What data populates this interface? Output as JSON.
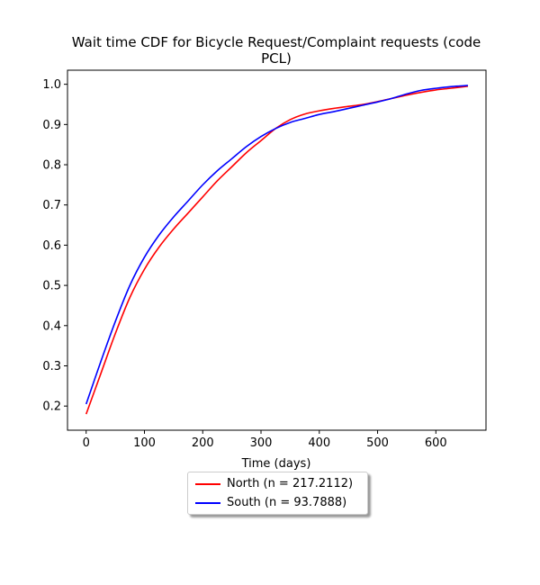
{
  "chart_data": {
    "type": "line",
    "title_lines": [
      "Wait time CDF for Bicycle Request/Complaint  requests (code",
      "PCL)"
    ],
    "xlabel": "Time (days)",
    "ylabel": "",
    "xlim": [
      -32,
      686
    ],
    "ylim": [
      0.14,
      1.035
    ],
    "xticks": [
      0,
      100,
      200,
      300,
      400,
      500,
      600
    ],
    "yticks": [
      0.2,
      0.3,
      0.4,
      0.5,
      0.6,
      0.7,
      0.8,
      0.9,
      1.0
    ],
    "ytick_labels": [
      "0.2",
      "0.3",
      "0.4",
      "0.5",
      "0.6",
      "0.7",
      "0.8",
      "0.9",
      "1.0"
    ],
    "grid": false,
    "legend_position": "below-center",
    "series": [
      {
        "name": "North (n = 217.2112)",
        "color": "#ff0000",
        "x": [
          0,
          25,
          50,
          75,
          100,
          125,
          150,
          175,
          200,
          225,
          250,
          275,
          300,
          325,
          350,
          375,
          400,
          425,
          450,
          475,
          500,
          525,
          550,
          575,
          600,
          625,
          655
        ],
        "y": [
          0.18,
          0.28,
          0.38,
          0.47,
          0.54,
          0.595,
          0.64,
          0.68,
          0.72,
          0.76,
          0.795,
          0.83,
          0.86,
          0.89,
          0.912,
          0.926,
          0.934,
          0.94,
          0.945,
          0.95,
          0.957,
          0.965,
          0.973,
          0.98,
          0.986,
          0.99,
          0.995
        ]
      },
      {
        "name": "South (n = 93.7888)",
        "color": "#0000ff",
        "x": [
          0,
          25,
          50,
          75,
          100,
          125,
          150,
          175,
          200,
          225,
          250,
          275,
          300,
          325,
          350,
          375,
          400,
          425,
          450,
          475,
          500,
          525,
          550,
          575,
          600,
          625,
          655
        ],
        "y": [
          0.205,
          0.31,
          0.41,
          0.5,
          0.57,
          0.625,
          0.67,
          0.71,
          0.75,
          0.785,
          0.815,
          0.845,
          0.87,
          0.89,
          0.905,
          0.915,
          0.925,
          0.932,
          0.94,
          0.948,
          0.956,
          0.965,
          0.976,
          0.985,
          0.99,
          0.994,
          0.997
        ]
      }
    ]
  }
}
